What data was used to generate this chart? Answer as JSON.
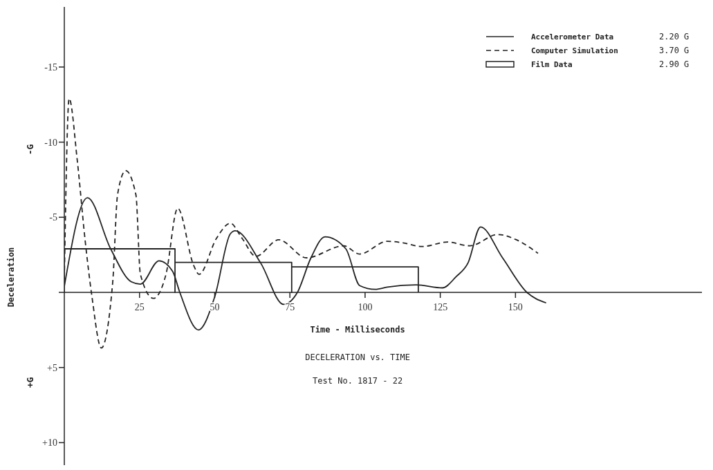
{
  "chart_data": {
    "type": "line",
    "title": "DECELERATION vs. TIME",
    "subtitle": "Test No. 1817 - 22",
    "xlabel": "Time - Milliseconds",
    "ylabel": "Deceleration",
    "annotations": [
      "2.20 G",
      "3.70 G",
      "2.90 G",
      "-G",
      "+G"
    ],
    "xlim": [
      0,
      212
    ],
    "xticks": [
      25,
      50,
      75,
      100,
      125,
      150
    ],
    "ylim": [
      11.5,
      -19
    ],
    "yticks": [
      -15,
      -10,
      -5,
      {
        "value": 5,
        "label": "+5"
      },
      {
        "value": 10,
        "label": "+10"
      }
    ],
    "legend": "top right",
    "marker": "none",
    "series": [
      {
        "name": "Accelerometer Data",
        "color": "#222222",
        "line_style": "solid",
        "x": [
          0,
          7.7,
          15.4,
          22.3,
          25.3,
          31.5,
          36,
          38.4,
          44.6,
          50,
          55.2,
          56.8,
          65.3,
          72.9,
          77.5,
          82,
          86.7,
          93.6,
          98.2,
          103.4,
          107.4,
          117,
          125.7,
          130.3,
          134.2,
          138.4,
          145.7,
          153.8,
          160.2
        ],
        "values": [
          -0.4,
          -6.3,
          -2.9,
          -0.7,
          -0.55,
          -2.1,
          -1.4,
          0,
          2.5,
          0.3,
          -3.9,
          -4.1,
          -1.95,
          0.8,
          0,
          -2.3,
          -3.7,
          -2.9,
          -0.45,
          -0.2,
          -0.35,
          -0.5,
          -0.3,
          -1.05,
          -1.95,
          -4.35,
          -2.3,
          0,
          0.7
        ]
      },
      {
        "name": "Computer Simulation",
        "color": "#222222",
        "line_style": "dashed",
        "x": [
          0,
          1.6,
          4.3,
          6.9,
          9.2,
          12.3,
          16.1,
          17.7,
          20.4,
          23.8,
          25.3,
          29.6,
          33.8,
          37.7,
          43,
          44.8,
          50.6,
          55.2,
          59.1,
          63.7,
          71.3,
          80.5,
          92.9,
          98.2,
          107.4,
          112.6,
          118.9,
          127.4,
          134.9,
          144.1,
          150.3,
          157.5
        ],
        "values": [
          -0.9,
          -12.9,
          -8.8,
          -3.5,
          0.3,
          3.7,
          -0.7,
          -6.5,
          -8.1,
          -6.5,
          -1.2,
          0.4,
          -1.2,
          -5.6,
          -1.8,
          -1.2,
          -3.6,
          -4.6,
          -3.6,
          -2.4,
          -3.5,
          -2.3,
          -3.1,
          -2.55,
          -3.4,
          -3.3,
          -3.05,
          -3.35,
          -3.1,
          -3.85,
          -3.5,
          -2.6
        ]
      },
      {
        "name": "Film Data",
        "color": "#222222",
        "line_style": "solid",
        "x": [
          0,
          0,
          36.8,
          36.8,
          36.8,
          75.6,
          75.6,
          75.6,
          117.7,
          117.7
        ],
        "values": [
          0,
          -2.9,
          -2.9,
          0,
          -2,
          -2,
          0,
          -1.7,
          -1.7,
          0
        ]
      }
    ]
  }
}
